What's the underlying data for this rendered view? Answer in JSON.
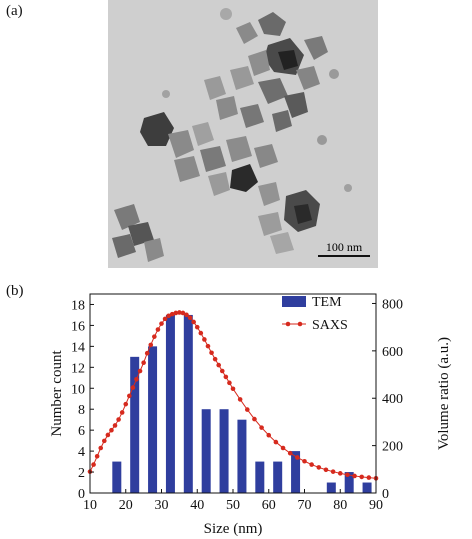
{
  "panels": {
    "a_label": "(a)",
    "b_label": "(b)"
  },
  "micrograph": {
    "scale_bar_label": "100 nm",
    "background_color": "#cfcfcf",
    "particle_color": "#3a3a3a"
  },
  "chart_data": {
    "type": "bar+line",
    "xlabel": "Size (nm)",
    "ylabel_left": "Number count",
    "ylabel_right": "Volume ratio (a.u.)",
    "xlim": [
      10,
      90
    ],
    "xticks": [
      10,
      20,
      30,
      40,
      50,
      60,
      70,
      80,
      90
    ],
    "ylim_left": [
      0,
      19
    ],
    "yticks_left": [
      0,
      2,
      4,
      6,
      8,
      10,
      12,
      14,
      16,
      18
    ],
    "ylim_right": [
      0,
      840
    ],
    "yticks_right": [
      0,
      200,
      400,
      600,
      800
    ],
    "legend_position": "top-right",
    "bar_series": {
      "name": "TEM",
      "color": "#2f3e9e",
      "x": [
        17.5,
        22.5,
        27.5,
        32.5,
        37.5,
        42.5,
        47.5,
        52.5,
        57.5,
        62.5,
        67.5,
        72.5,
        77.5,
        82.5,
        87.5
      ],
      "values": [
        3,
        13,
        14,
        17,
        17,
        8,
        8,
        7,
        3,
        3,
        4,
        0,
        1,
        2,
        1
      ]
    },
    "line_series": {
      "name": "SAXS",
      "color": "#d62a1e",
      "x": [
        10,
        11,
        12,
        13,
        14,
        15,
        16,
        17,
        18,
        19,
        20,
        21,
        22,
        23,
        24,
        25,
        26,
        27,
        28,
        29,
        30,
        31,
        32,
        33,
        34,
        35,
        36,
        37,
        38,
        39,
        40,
        41,
        42,
        43,
        44,
        45,
        46,
        47,
        48,
        49,
        50,
        52,
        54,
        56,
        58,
        60,
        62,
        64,
        66,
        68,
        70,
        72,
        74,
        76,
        78,
        80,
        82,
        84,
        86,
        88,
        90
      ],
      "values": [
        90,
        120,
        155,
        190,
        220,
        245,
        265,
        285,
        310,
        340,
        375,
        410,
        445,
        480,
        515,
        550,
        590,
        625,
        660,
        690,
        715,
        735,
        748,
        755,
        760,
        762,
        760,
        752,
        740,
        722,
        700,
        675,
        648,
        620,
        592,
        565,
        540,
        515,
        490,
        465,
        440,
        395,
        352,
        312,
        276,
        244,
        215,
        190,
        168,
        150,
        134,
        120,
        108,
        98,
        90,
        83,
        77,
        72,
        68,
        65,
        62
      ]
    }
  }
}
